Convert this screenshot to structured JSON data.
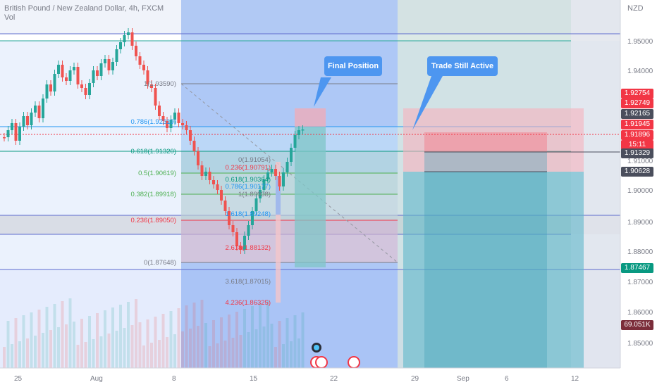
{
  "header": {
    "symbol": "British Pound / New Zealand Dollar, 4h, FXCM",
    "volume_label": "Vol"
  },
  "price_scale": {
    "currency": "NZD",
    "ticks": [
      "1.95000",
      "1.94000",
      "1.91000",
      "1.90000",
      "1.89000",
      "1.88000",
      "1.87000",
      "1.86000",
      "1.85000"
    ],
    "tags": [
      {
        "text": "1.92754",
        "color": "#f23645"
      },
      {
        "text": "1.92749",
        "color": "#f23645"
      },
      {
        "text": "1.92165",
        "color": "#4a4e5c"
      },
      {
        "text": "1.91945",
        "color": "#f23645"
      },
      {
        "text": "1.91896",
        "color": "#f23645"
      },
      {
        "text": "15:11",
        "color": "#f23645"
      },
      {
        "text": "1.91329",
        "color": "#4a4e5c"
      },
      {
        "text": "1.90628",
        "color": "#4a4e5c"
      },
      {
        "text": "1.87467",
        "color": "#089981"
      },
      {
        "text": "69.051K",
        "color": "#7b2d3a"
      }
    ]
  },
  "time_axis": [
    "25",
    "Aug",
    "8",
    "15",
    "22",
    "29",
    "Sep",
    "6",
    "12"
  ],
  "fib_retracement": [
    {
      "label": "1(1.93590)",
      "color": "#787b86"
    },
    {
      "label": "0.786(1.92319)",
      "color": "#2196f3"
    },
    {
      "label": "0.618(1.91320)",
      "color": "#089981"
    },
    {
      "label": "0.5(1.90619)",
      "color": "#4caf50"
    },
    {
      "label": "0.382(1.89918)",
      "color": "#4caf50"
    },
    {
      "label": "0.236(1.89050)",
      "color": "#f23645"
    },
    {
      "label": "0(1.87648)",
      "color": "#787b86"
    }
  ],
  "fib_extension": [
    {
      "label": "0(1.91054)",
      "color": "#787b86"
    },
    {
      "label": "0.236(1.90791)",
      "color": "#f23645"
    },
    {
      "label": "0.618(1.90364)",
      "color": "#089981"
    },
    {
      "label": "0.786(1.90177)",
      "color": "#2196f3"
    },
    {
      "label": "1(1.89938)",
      "color": "#787b86"
    },
    {
      "label": "1.618(1.89248)",
      "color": "#2196f3"
    },
    {
      "label": "2.618(1.88132)",
      "color": "#f23645"
    },
    {
      "label": "3.618(1.87015)",
      "color": "#787b86"
    },
    {
      "label": "4.236(1.86325)",
      "color": "#f23645"
    }
  ],
  "callouts": {
    "final_position": "Final Position",
    "trade_still_active": "Trade Still Active"
  }
}
